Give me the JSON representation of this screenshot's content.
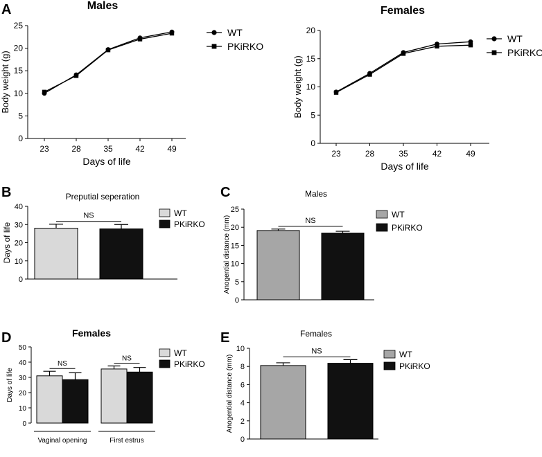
{
  "colors": {
    "wt_bar": "#d9d9d9",
    "wt_bar_dark": "#a6a6a6",
    "pkirko_bar": "#111111",
    "line": "#000000"
  },
  "panels": [
    {
      "label": "A"
    },
    {
      "label": "B"
    },
    {
      "label": "C"
    },
    {
      "label": "D"
    },
    {
      "label": "E"
    }
  ],
  "chart_data": [
    {
      "id": "A1",
      "type": "line",
      "title": "Males",
      "xlabel": "Days of life",
      "ylabel": "Body weight (g)",
      "categories": [
        "23",
        "28",
        "35",
        "42",
        "49"
      ],
      "ylim": [
        0,
        25
      ],
      "yticks": [
        "0",
        "5",
        "10",
        "15",
        "20",
        "25"
      ],
      "series": [
        {
          "name": "WT",
          "marker": "circle",
          "values": [
            10.0,
            14.1,
            19.7,
            22.3,
            23.6
          ]
        },
        {
          "name": "PKiRKO",
          "marker": "square",
          "values": [
            10.3,
            13.9,
            19.6,
            22.0,
            23.3
          ]
        }
      ]
    },
    {
      "id": "A2",
      "type": "line",
      "title": "Females",
      "xlabel": "Days of life",
      "ylabel": "Body weight (g)",
      "categories": [
        "23",
        "28",
        "35",
        "42",
        "49"
      ],
      "ylim": [
        0,
        20
      ],
      "yticks": [
        "0",
        "5",
        "10",
        "15",
        "20"
      ],
      "series": [
        {
          "name": "WT",
          "marker": "circle",
          "values": [
            9.1,
            12.4,
            16.1,
            17.6,
            18.0
          ]
        },
        {
          "name": "PKiRKO",
          "marker": "square",
          "values": [
            9.0,
            12.2,
            15.9,
            17.2,
            17.4
          ]
        }
      ]
    },
    {
      "id": "B",
      "type": "bar",
      "title": "Preputial seperation",
      "xlabel": "",
      "ylabel": "Days of life",
      "ylim": [
        0,
        40
      ],
      "yticks": [
        "0",
        "10",
        "20",
        "30",
        "40"
      ],
      "series": [
        {
          "name": "WT",
          "value": 28.0,
          "error": 2.2
        },
        {
          "name": "PKiRKO",
          "value": 27.6,
          "error": 2.4
        }
      ],
      "annotation": "NS"
    },
    {
      "id": "C",
      "type": "bar",
      "title": "Males",
      "xlabel": "",
      "ylabel": "Anogential distance (mm)",
      "ylim": [
        0,
        25
      ],
      "yticks": [
        "0",
        "5",
        "10",
        "15",
        "20",
        "25"
      ],
      "series": [
        {
          "name": "WT",
          "value": 19.1,
          "error": 0.4
        },
        {
          "name": "PKiRKO",
          "value": 18.4,
          "error": 0.5
        }
      ],
      "annotation": "NS"
    },
    {
      "id": "D",
      "type": "bar",
      "title": "Females",
      "xlabel": "",
      "ylabel": "Days of life",
      "ylim": [
        0,
        50
      ],
      "yticks": [
        "0",
        "10",
        "20",
        "30",
        "40",
        "50"
      ],
      "categories": [
        "Vaginal opening",
        "First estrus"
      ],
      "series": [
        {
          "name": "WT",
          "values": [
            31,
            35.5
          ],
          "errors": [
            3.0,
            2.0
          ]
        },
        {
          "name": "PKiRKO",
          "values": [
            28.5,
            33.5
          ],
          "errors": [
            4.5,
            3.0
          ]
        }
      ],
      "annotations": [
        "NS",
        "NS"
      ]
    },
    {
      "id": "E",
      "type": "bar",
      "title": "Females",
      "xlabel": "",
      "ylabel": "Anogential distance (mm)",
      "ylim": [
        0,
        10
      ],
      "yticks": [
        "0",
        "2",
        "4",
        "6",
        "8",
        "10"
      ],
      "series": [
        {
          "name": "WT",
          "value": 8.1,
          "error": 0.3
        },
        {
          "name": "PKiRKO",
          "value": 8.35,
          "error": 0.4
        }
      ],
      "annotation": "NS"
    }
  ]
}
